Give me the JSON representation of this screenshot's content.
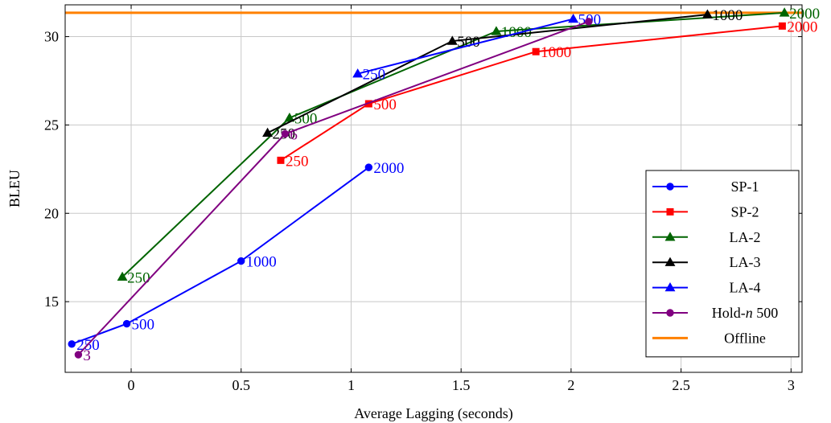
{
  "chart_data": {
    "type": "line",
    "title": "",
    "xlabel": "Average Lagging (seconds)",
    "ylabel": "BLEU",
    "xlim": [
      -0.3,
      3.05
    ],
    "ylim": [
      11.0,
      31.8
    ],
    "xticks": [
      0,
      0.5,
      1,
      1.5,
      2,
      2.5,
      3
    ],
    "xtick_labels": [
      "0",
      "0.5",
      "1",
      "1.5",
      "2",
      "2.5",
      "3"
    ],
    "yticks": [
      15,
      20,
      25,
      30
    ],
    "ytick_labels": [
      "15",
      "20",
      "25",
      "30"
    ],
    "grid": true,
    "legend_position": "lower-right",
    "series": [
      {
        "name": "SP-1",
        "color": "#0000ff",
        "marker": "circle",
        "x": [
          -0.27,
          -0.02,
          0.5,
          1.08
        ],
        "y": [
          12.6,
          13.75,
          17.3,
          22.6
        ],
        "labels": [
          "250",
          "500",
          "1000",
          "2000"
        ]
      },
      {
        "name": "SP-2",
        "color": "#ff0000",
        "marker": "square",
        "x": [
          0.68,
          1.08,
          1.84,
          2.96
        ],
        "y": [
          23.0,
          26.2,
          29.15,
          30.6
        ],
        "labels": [
          "250",
          "500",
          "1000",
          "2000"
        ]
      },
      {
        "name": "LA-2",
        "color": "#006400",
        "marker": "triangle",
        "x": [
          -0.04,
          0.72,
          1.66,
          2.97
        ],
        "y": [
          16.4,
          25.4,
          30.3,
          31.35
        ],
        "labels": [
          "250",
          "500",
          "1000",
          "2000"
        ]
      },
      {
        "name": "LA-3",
        "color": "#000000",
        "marker": "triangle",
        "x": [
          0.62,
          1.46,
          2.62
        ],
        "y": [
          24.55,
          29.75,
          31.25
        ],
        "labels": [
          "250",
          "500",
          "1000"
        ]
      },
      {
        "name": "LA-4",
        "color": "#0000ff",
        "marker": "triangle",
        "x": [
          1.03,
          2.01
        ],
        "y": [
          27.9,
          31.0
        ],
        "labels": [
          "250",
          "500"
        ]
      },
      {
        "name": "Hold-$n$ 500",
        "color": "#800080",
        "marker": "circle",
        "x": [
          -0.24,
          0.7,
          2.08
        ],
        "y": [
          12.0,
          24.5,
          30.85
        ],
        "labels": [
          "3",
          "6",
          ""
        ]
      }
    ],
    "reference_lines": [
      {
        "name": "Offline",
        "color": "#ff8000",
        "y": 31.35
      }
    ]
  }
}
